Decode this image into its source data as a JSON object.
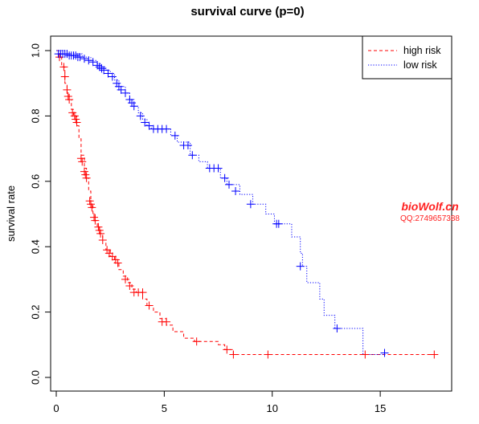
{
  "chart_data": {
    "type": "line",
    "title": "survival curve (p=0)",
    "xlabel": "",
    "ylabel": "survival rate",
    "xlim": [
      0,
      17.6
    ],
    "ylim": [
      0,
      1.0
    ],
    "x_ticks": [
      "0",
      "5",
      "10",
      "15"
    ],
    "y_ticks": [
      "0.0",
      "0.2",
      "0.4",
      "0.6",
      "0.8",
      "1.0"
    ],
    "legend_position": "top-right",
    "series": [
      {
        "name": "high risk",
        "color": "#ff0000",
        "line_style": "dashed",
        "steps": [
          [
            0,
            1.0
          ],
          [
            0.1,
            0.98
          ],
          [
            0.25,
            0.95
          ],
          [
            0.4,
            0.9
          ],
          [
            0.5,
            0.87
          ],
          [
            0.6,
            0.85
          ],
          [
            0.7,
            0.82
          ],
          [
            0.8,
            0.8
          ],
          [
            0.95,
            0.77
          ],
          [
            1.05,
            0.73
          ],
          [
            1.15,
            0.68
          ],
          [
            1.3,
            0.64
          ],
          [
            1.4,
            0.61
          ],
          [
            1.5,
            0.57
          ],
          [
            1.6,
            0.53
          ],
          [
            1.7,
            0.5
          ],
          [
            1.8,
            0.48
          ],
          [
            1.9,
            0.46
          ],
          [
            2.0,
            0.44
          ],
          [
            2.15,
            0.42
          ],
          [
            2.3,
            0.39
          ],
          [
            2.5,
            0.37
          ],
          [
            2.7,
            0.35
          ],
          [
            2.9,
            0.33
          ],
          [
            3.1,
            0.31
          ],
          [
            3.3,
            0.29
          ],
          [
            3.5,
            0.27
          ],
          [
            3.7,
            0.26
          ],
          [
            4.0,
            0.24
          ],
          [
            4.2,
            0.22
          ],
          [
            4.5,
            0.2
          ],
          [
            4.8,
            0.18
          ],
          [
            5.1,
            0.16
          ],
          [
            5.4,
            0.14
          ],
          [
            5.9,
            0.12
          ],
          [
            6.4,
            0.11
          ],
          [
            7.5,
            0.1
          ],
          [
            7.8,
            0.085
          ],
          [
            8.2,
            0.07
          ],
          [
            17.6,
            0.07
          ]
        ],
        "censored": [
          [
            0.15,
            0.98
          ],
          [
            0.35,
            0.95
          ],
          [
            0.4,
            0.92
          ],
          [
            0.5,
            0.88
          ],
          [
            0.55,
            0.86
          ],
          [
            0.6,
            0.85
          ],
          [
            0.75,
            0.81
          ],
          [
            0.85,
            0.8
          ],
          [
            0.9,
            0.79
          ],
          [
            0.95,
            0.78
          ],
          [
            1.15,
            0.67
          ],
          [
            1.2,
            0.66
          ],
          [
            1.3,
            0.63
          ],
          [
            1.35,
            0.62
          ],
          [
            1.4,
            0.61
          ],
          [
            1.55,
            0.54
          ],
          [
            1.6,
            0.53
          ],
          [
            1.65,
            0.52
          ],
          [
            1.75,
            0.49
          ],
          [
            1.8,
            0.48
          ],
          [
            1.95,
            0.46
          ],
          [
            2.0,
            0.45
          ],
          [
            2.05,
            0.44
          ],
          [
            2.15,
            0.42
          ],
          [
            2.35,
            0.39
          ],
          [
            2.45,
            0.38
          ],
          [
            2.6,
            0.37
          ],
          [
            2.75,
            0.36
          ],
          [
            2.85,
            0.35
          ],
          [
            3.2,
            0.3
          ],
          [
            3.4,
            0.28
          ],
          [
            3.6,
            0.26
          ],
          [
            3.8,
            0.26
          ],
          [
            4.0,
            0.26
          ],
          [
            4.3,
            0.22
          ],
          [
            4.9,
            0.17
          ],
          [
            5.1,
            0.17
          ],
          [
            6.5,
            0.11
          ],
          [
            7.9,
            0.085
          ],
          [
            8.2,
            0.07
          ],
          [
            9.8,
            0.07
          ],
          [
            14.3,
            0.07
          ],
          [
            17.5,
            0.07
          ]
        ]
      },
      {
        "name": "low risk",
        "color": "#0000ff",
        "line_style": "dotted",
        "steps": [
          [
            0,
            1.0
          ],
          [
            0.5,
            0.99
          ],
          [
            1.2,
            0.98
          ],
          [
            1.6,
            0.97
          ],
          [
            1.9,
            0.96
          ],
          [
            2.1,
            0.95
          ],
          [
            2.3,
            0.94
          ],
          [
            2.5,
            0.93
          ],
          [
            2.7,
            0.91
          ],
          [
            2.9,
            0.89
          ],
          [
            3.2,
            0.87
          ],
          [
            3.4,
            0.85
          ],
          [
            3.6,
            0.83
          ],
          [
            3.8,
            0.81
          ],
          [
            4.0,
            0.79
          ],
          [
            4.2,
            0.77
          ],
          [
            4.4,
            0.76
          ],
          [
            5.3,
            0.74
          ],
          [
            5.6,
            0.72
          ],
          [
            6.2,
            0.68
          ],
          [
            6.6,
            0.66
          ],
          [
            7.0,
            0.64
          ],
          [
            7.6,
            0.61
          ],
          [
            7.9,
            0.59
          ],
          [
            8.5,
            0.56
          ],
          [
            9.1,
            0.53
          ],
          [
            9.7,
            0.5
          ],
          [
            10.1,
            0.47
          ],
          [
            10.9,
            0.43
          ],
          [
            11.3,
            0.38
          ],
          [
            11.4,
            0.34
          ],
          [
            11.6,
            0.29
          ],
          [
            12.2,
            0.24
          ],
          [
            12.4,
            0.19
          ],
          [
            12.9,
            0.15
          ],
          [
            14.2,
            0.07
          ],
          [
            15.2,
            0.07
          ]
        ],
        "censored": [
          [
            0.1,
            0.99
          ],
          [
            0.2,
            0.99
          ],
          [
            0.3,
            0.99
          ],
          [
            0.4,
            0.99
          ],
          [
            0.5,
            0.99
          ],
          [
            0.6,
            0.985
          ],
          [
            0.7,
            0.985
          ],
          [
            0.8,
            0.985
          ],
          [
            0.9,
            0.985
          ],
          [
            1.0,
            0.98
          ],
          [
            1.1,
            0.98
          ],
          [
            1.3,
            0.975
          ],
          [
            1.5,
            0.97
          ],
          [
            1.7,
            0.965
          ],
          [
            1.9,
            0.955
          ],
          [
            2.0,
            0.95
          ],
          [
            2.1,
            0.945
          ],
          [
            2.2,
            0.94
          ],
          [
            2.4,
            0.93
          ],
          [
            2.6,
            0.92
          ],
          [
            2.8,
            0.9
          ],
          [
            2.9,
            0.89
          ],
          [
            3.0,
            0.88
          ],
          [
            3.2,
            0.87
          ],
          [
            3.4,
            0.85
          ],
          [
            3.5,
            0.84
          ],
          [
            3.6,
            0.83
          ],
          [
            3.9,
            0.8
          ],
          [
            4.1,
            0.78
          ],
          [
            4.3,
            0.77
          ],
          [
            4.5,
            0.76
          ],
          [
            4.7,
            0.76
          ],
          [
            4.9,
            0.76
          ],
          [
            5.1,
            0.76
          ],
          [
            5.5,
            0.74
          ],
          [
            5.9,
            0.71
          ],
          [
            6.1,
            0.71
          ],
          [
            6.3,
            0.68
          ],
          [
            7.1,
            0.64
          ],
          [
            7.3,
            0.64
          ],
          [
            7.5,
            0.64
          ],
          [
            7.8,
            0.61
          ],
          [
            8.0,
            0.59
          ],
          [
            8.3,
            0.57
          ],
          [
            9.0,
            0.53
          ],
          [
            10.2,
            0.47
          ],
          [
            10.3,
            0.47
          ],
          [
            11.3,
            0.34
          ],
          [
            13.0,
            0.15
          ],
          [
            15.2,
            0.075
          ]
        ]
      }
    ]
  },
  "watermark": {
    "line1": "bioWolf.cn",
    "line2": "QQ:2749657388"
  }
}
